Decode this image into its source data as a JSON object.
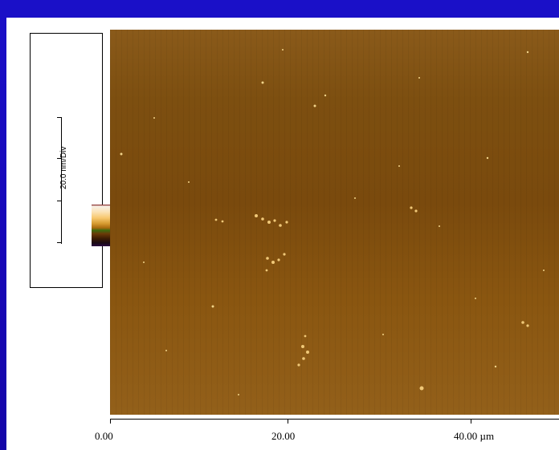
{
  "colorbar": {
    "label": "20.0 nm/Div"
  },
  "x_axis": {
    "tick_labels": [
      "0.00",
      "20.00",
      "40.00 µm"
    ]
  },
  "colors": {
    "slide_background": "#1808b8",
    "sample_base": "#7a4a0d",
    "particle": "#f2d48a"
  }
}
